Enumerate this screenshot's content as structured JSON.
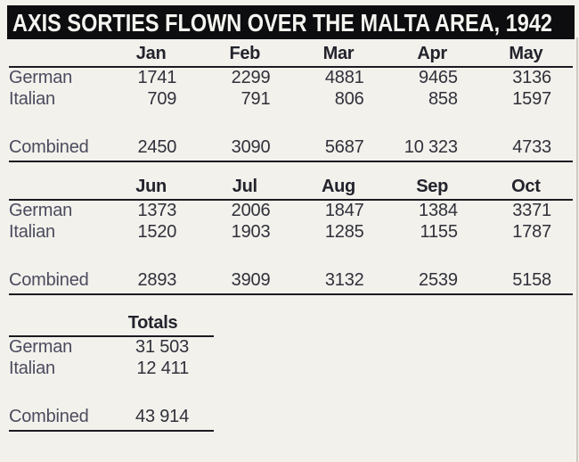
{
  "title": "AXIS SORTIES FLOWN OVER THE MALTA AREA, 1942",
  "colors": {
    "title_bar_bg": "#0d0d10",
    "title_text": "#f5f4f0",
    "paper_bg": "#f3f1ec",
    "rule": "#1b1b21",
    "number_text": "#30303a",
    "label_text": "#4b4b5e"
  },
  "chart_data": {
    "type": "table",
    "title": "AXIS SORTIES FLOWN OVER THE MALTA AREA, 1942",
    "row_categories": [
      "German",
      "Italian",
      "Combined"
    ],
    "sections": [
      {
        "columns": [
          "Jan",
          "Feb",
          "Mar",
          "Apr",
          "May"
        ],
        "rows": [
          {
            "label": "German",
            "values": [
              "1741",
              "2299",
              "4881",
              "9465",
              "3136"
            ]
          },
          {
            "label": "Italian",
            "values": [
              "709",
              "791",
              "806",
              "858",
              "1597"
            ]
          }
        ],
        "combined": {
          "label": "Combined",
          "values": [
            "2450",
            "3090",
            "5687",
            "10 323",
            "4733"
          ]
        }
      },
      {
        "columns": [
          "Jun",
          "Jul",
          "Aug",
          "Sep",
          "Oct"
        ],
        "rows": [
          {
            "label": "German",
            "values": [
              "1373",
              "2006",
              "1847",
              "1384",
              "3371"
            ]
          },
          {
            "label": "Italian",
            "values": [
              "1520",
              "1903",
              "1285",
              "1155",
              "1787"
            ]
          }
        ],
        "combined": {
          "label": "Combined",
          "values": [
            "2893",
            "3909",
            "3132",
            "2539",
            "5158"
          ]
        }
      },
      {
        "columns": [
          "Totals"
        ],
        "rows": [
          {
            "label": "German",
            "values": [
              "31 503"
            ]
          },
          {
            "label": "Italian",
            "values": [
              "12 411"
            ]
          }
        ],
        "combined": {
          "label": "Combined",
          "values": [
            "43 914"
          ]
        }
      }
    ]
  }
}
